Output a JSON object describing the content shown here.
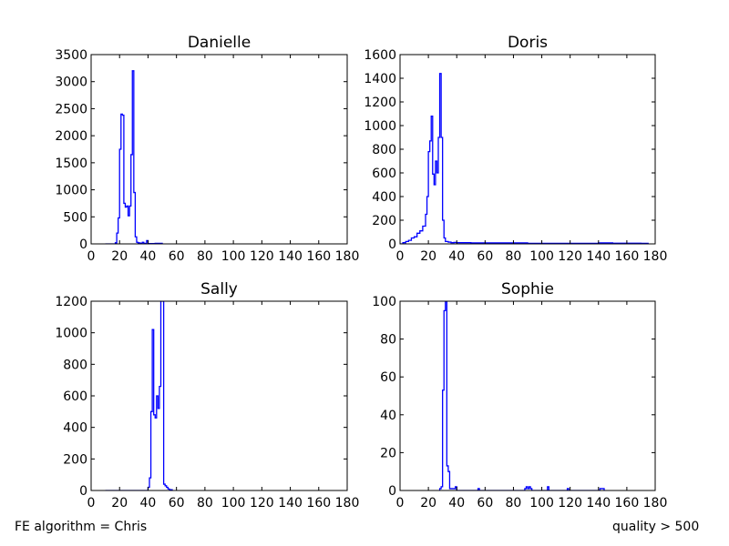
{
  "footer": {
    "left": "FE algorithm = Chris",
    "right": "quality > 500"
  },
  "colors": {
    "line": "#0000ff",
    "axis": "#000000",
    "background": "#ffffff"
  },
  "chart_data": [
    {
      "type": "line",
      "style": "step-histogram",
      "title": "Danielle",
      "xlim": [
        0,
        180
      ],
      "ylim": [
        0,
        3500
      ],
      "xticks": [
        0,
        20,
        40,
        60,
        80,
        100,
        120,
        140,
        160,
        180
      ],
      "yticks": [
        0,
        500,
        1000,
        1500,
        2000,
        2500,
        3000,
        3500
      ],
      "x": [
        10,
        17,
        18,
        19,
        20,
        21,
        22,
        23,
        24,
        25,
        26,
        27,
        28,
        29,
        30,
        31,
        32,
        33,
        34,
        35,
        36,
        37,
        38,
        39,
        40,
        45,
        50
      ],
      "y": [
        0,
        20,
        200,
        480,
        1750,
        2400,
        2380,
        750,
        680,
        700,
        520,
        700,
        1650,
        3200,
        950,
        130,
        30,
        20,
        15,
        10,
        30,
        10,
        8,
        60,
        5,
        10,
        0
      ]
    },
    {
      "type": "line",
      "style": "step-histogram",
      "title": "Doris",
      "xlim": [
        0,
        180
      ],
      "ylim": [
        0,
        1600
      ],
      "xticks": [
        0,
        20,
        40,
        60,
        80,
        100,
        120,
        140,
        160,
        180
      ],
      "yticks": [
        0,
        200,
        400,
        600,
        800,
        1000,
        1200,
        1400,
        1600
      ],
      "x": [
        0,
        2,
        4,
        6,
        8,
        10,
        12,
        14,
        16,
        18,
        19,
        20,
        21,
        22,
        23,
        24,
        25,
        26,
        27,
        28,
        29,
        30,
        31,
        32,
        34,
        36,
        38,
        40,
        50,
        60,
        70,
        80,
        90,
        140,
        150,
        170,
        175
      ],
      "y": [
        0,
        10,
        20,
        30,
        50,
        60,
        90,
        110,
        150,
        250,
        400,
        780,
        870,
        1080,
        590,
        500,
        700,
        600,
        900,
        1440,
        900,
        200,
        50,
        20,
        15,
        10,
        12,
        10,
        8,
        8,
        8,
        8,
        5,
        8,
        6,
        5,
        0
      ]
    },
    {
      "type": "line",
      "style": "step-histogram",
      "title": "Sally",
      "xlim": [
        0,
        180
      ],
      "ylim": [
        0,
        1200
      ],
      "xticks": [
        0,
        20,
        40,
        60,
        80,
        100,
        120,
        140,
        160,
        180
      ],
      "yticks": [
        0,
        200,
        400,
        600,
        800,
        1000,
        1200
      ],
      "x": [
        10,
        35,
        40,
        41,
        42,
        43,
        44,
        45,
        46,
        47,
        48,
        49,
        50,
        51,
        52,
        53,
        54,
        55,
        57
      ],
      "y": [
        0,
        0,
        20,
        80,
        500,
        1020,
        480,
        460,
        600,
        520,
        660,
        1200,
        1200,
        40,
        30,
        20,
        10,
        5,
        0
      ],
      "note": "tallest peak is clipped at the top of the axes (> 1200)"
    },
    {
      "type": "line",
      "style": "step-histogram",
      "title": "Sophie",
      "xlim": [
        0,
        180
      ],
      "ylim": [
        0,
        100
      ],
      "xticks": [
        0,
        20,
        40,
        60,
        80,
        100,
        120,
        140,
        160,
        180
      ],
      "yticks": [
        0,
        20,
        40,
        60,
        80,
        100
      ],
      "x": [
        28,
        29,
        30,
        31,
        32,
        33,
        34,
        35,
        36,
        37,
        38,
        39,
        40,
        55,
        56,
        88,
        89,
        90,
        91,
        92,
        93,
        104,
        105,
        118,
        119,
        141,
        142,
        143,
        144
      ],
      "y": [
        1,
        2,
        53,
        95,
        100,
        13,
        10,
        1,
        1,
        1,
        1,
        2,
        0,
        1,
        0,
        1,
        2,
        1,
        2,
        1,
        0,
        2,
        0,
        1,
        0,
        1,
        1,
        1,
        0
      ]
    }
  ]
}
